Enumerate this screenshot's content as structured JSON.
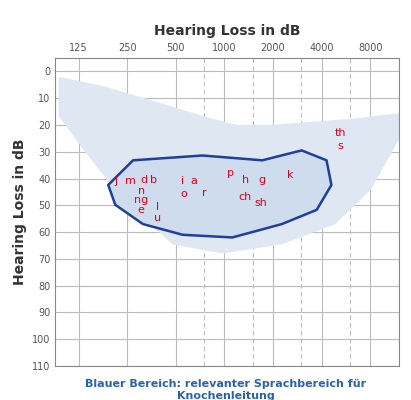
{
  "chart_data": {
    "type": "audiogram",
    "x_label": "Hearing Loss in dB",
    "y_label": "Hearing Loss in dB",
    "caption": "Blauer Bereich: relevanter Sprachbereich für Knochenleitung",
    "caption_color": "#2a63ad",
    "log": "x",
    "grid": true,
    "xlim": [
      90,
      12000
    ],
    "xticks": [
      125,
      250,
      500,
      1000,
      2000,
      4000,
      8000
    ],
    "intermediate_frequencies": [
      750,
      1500,
      3000,
      6000
    ],
    "ylim": [
      110,
      -5
    ],
    "yticks": [
      0,
      10,
      20,
      30,
      40,
      50,
      60,
      70,
      80,
      90,
      100,
      110
    ],
    "speech_area": {
      "color": "#dfe7f2",
      "frequencies": [
        94,
        178,
        362,
        732,
        1185,
        1920,
        6110,
        12400,
        12400,
        8100,
        4870,
        2260,
        973,
        479,
        236,
        135,
        94
      ],
      "levels": [
        2,
        5.5,
        11,
        16.6,
        20,
        20,
        17.7,
        15.5,
        24,
        44,
        57,
        64.6,
        68,
        64.6,
        48,
        29.5,
        16.6
      ]
    },
    "core_area": {
      "color": "#cfdcee",
      "edge_color": "#1f3f9a",
      "frequencies": [
        191,
        272,
        732,
        1717,
        3010,
        4290,
        4600,
        3730,
        2270,
        1120,
        551,
        313,
        211
      ],
      "levels": [
        42.4,
        33.2,
        31.4,
        33.2,
        29.5,
        33.2,
        42.4,
        51.7,
        57,
        62,
        61,
        57,
        49.8
      ]
    },
    "phoneme_color": "#e2001a",
    "phonemes": [
      {
        "label": "j",
        "frequency": 214,
        "level": 41
      },
      {
        "label": "m",
        "frequency": 261,
        "level": 41
      },
      {
        "label": "d",
        "frequency": 318,
        "level": 40.6
      },
      {
        "label": "b",
        "frequency": 366,
        "level": 40.6
      },
      {
        "label": "n",
        "frequency": 305,
        "level": 44.6
      },
      {
        "label": "ng",
        "frequency": 305,
        "level": 48
      },
      {
        "label": "e",
        "frequency": 305,
        "level": 51.7
      },
      {
        "label": "l",
        "frequency": 387,
        "level": 50.5
      },
      {
        "label": "u",
        "frequency": 387,
        "level": 54.6
      },
      {
        "label": "i",
        "frequency": 552,
        "level": 41
      },
      {
        "label": "a",
        "frequency": 645,
        "level": 41
      },
      {
        "label": "o",
        "frequency": 558,
        "level": 45.8
      },
      {
        "label": "r",
        "frequency": 753,
        "level": 45.4
      },
      {
        "label": "p",
        "frequency": 1087,
        "level": 38
      },
      {
        "label": "h",
        "frequency": 1346,
        "level": 40.6
      },
      {
        "label": "g",
        "frequency": 1717,
        "level": 40.6
      },
      {
        "label": "k",
        "frequency": 2548,
        "level": 38.7
      },
      {
        "label": "ch",
        "frequency": 1346,
        "level": 46.9
      },
      {
        "label": "sh",
        "frequency": 1690,
        "level": 49
      },
      {
        "label": "th",
        "frequency": 5240,
        "level": 23
      },
      {
        "label": "s",
        "frequency": 5240,
        "level": 27.7
      }
    ]
  }
}
